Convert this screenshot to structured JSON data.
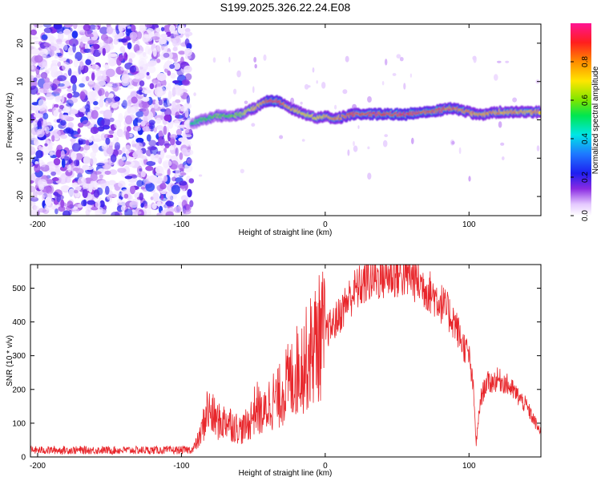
{
  "title": "S199.2025.326.22.24.E08",
  "chart_data": [
    {
      "type": "heatmap",
      "xlabel": "Height of straight line (km)",
      "ylabel": "Frequency (Hz)",
      "xlim": [
        -205,
        150
      ],
      "ylim": [
        -25,
        25
      ],
      "xticks": [
        -200,
        -100,
        0,
        100
      ],
      "xtick_labels": [
        "-200",
        "-100",
        "0",
        "100"
      ],
      "yticks": [
        -20,
        -10,
        0,
        10,
        20
      ],
      "ytick_labels": [
        "-20",
        "-10",
        "0",
        "10",
        "20"
      ],
      "colorbar": {
        "label": "Normalized spectral amplitude",
        "range": [
          0,
          1
        ],
        "ticks": [
          0.0,
          0.2,
          0.4,
          0.6,
          0.8
        ],
        "tick_labels": [
          "0.0",
          "0.2",
          "0.4",
          "0.6",
          "0.8"
        ]
      },
      "noise_region": {
        "x_range": [
          -205,
          -93
        ],
        "amplitude_range": [
          0.02,
          0.25
        ]
      },
      "ridge": {
        "x": [
          -93,
          -85,
          -75,
          -65,
          -58,
          -52,
          -47,
          -43,
          -40,
          -37,
          -34,
          -30,
          -27,
          -20,
          -15,
          -10,
          -5,
          0,
          5,
          10,
          15,
          20,
          30,
          40,
          50,
          60,
          70,
          80,
          85,
          90,
          95,
          100,
          105,
          110,
          120,
          130,
          150
        ],
        "frequency": [
          -1,
          0,
          1,
          1,
          1.5,
          2.5,
          3.5,
          4.5,
          5,
          5,
          5,
          4.5,
          3.5,
          2.5,
          1.5,
          1,
          0.5,
          1,
          0.5,
          0.5,
          1,
          1.5,
          1.5,
          1.5,
          1.5,
          1.5,
          2,
          2.5,
          3,
          3,
          2.5,
          2,
          1.5,
          1.5,
          2,
          2,
          2
        ],
        "peak_amplitude": [
          0.5,
          0.55,
          0.6,
          0.6,
          0.65,
          0.7,
          0.75,
          0.8,
          0.9,
          0.95,
          0.95,
          0.9,
          0.8,
          0.75,
          0.75,
          0.7,
          0.75,
          0.75,
          0.8,
          0.8,
          0.85,
          0.9,
          0.9,
          0.95,
          0.95,
          0.95,
          0.9,
          0.9,
          0.85,
          0.85,
          0.85,
          0.8,
          0.8,
          0.8,
          0.8,
          0.8,
          0.8
        ]
      }
    },
    {
      "type": "line",
      "xlabel": "Height of straight line (km)",
      "ylabel": "SNR (10 * v/v)",
      "xlim": [
        -205,
        150
      ],
      "ylim": [
        0,
        570
      ],
      "xticks": [
        -200,
        -100,
        0,
        100
      ],
      "xtick_labels": [
        "-200",
        "-100",
        "0",
        "100"
      ],
      "yticks": [
        0,
        100,
        200,
        300,
        400,
        500
      ],
      "ytick_labels": [
        "0",
        "100",
        "200",
        "300",
        "400",
        "500"
      ],
      "color": "#e8262b",
      "series": [
        {
          "name": "SNR",
          "x": [
            -205,
            -180,
            -150,
            -120,
            -100,
            -92,
            -87,
            -82,
            -78,
            -73,
            -68,
            -63,
            -58,
            -53,
            -48,
            -43,
            -38,
            -33,
            -28,
            -23,
            -18,
            -13,
            -8,
            -3,
            0,
            5,
            10,
            15,
            20,
            30,
            40,
            50,
            55,
            60,
            70,
            80,
            90,
            95,
            100,
            103,
            105,
            108,
            112,
            115,
            120,
            125,
            130,
            140,
            150
          ],
          "values": [
            20,
            20,
            20,
            20,
            20,
            22,
            60,
            140,
            120,
            100,
            110,
            90,
            80,
            100,
            150,
            120,
            170,
            170,
            210,
            230,
            270,
            290,
            330,
            360,
            370,
            390,
            420,
            460,
            490,
            525,
            535,
            540,
            540,
            535,
            500,
            460,
            400,
            340,
            300,
            200,
            40,
            170,
            220,
            220,
            230,
            220,
            200,
            150,
            70
          ]
        }
      ]
    }
  ]
}
